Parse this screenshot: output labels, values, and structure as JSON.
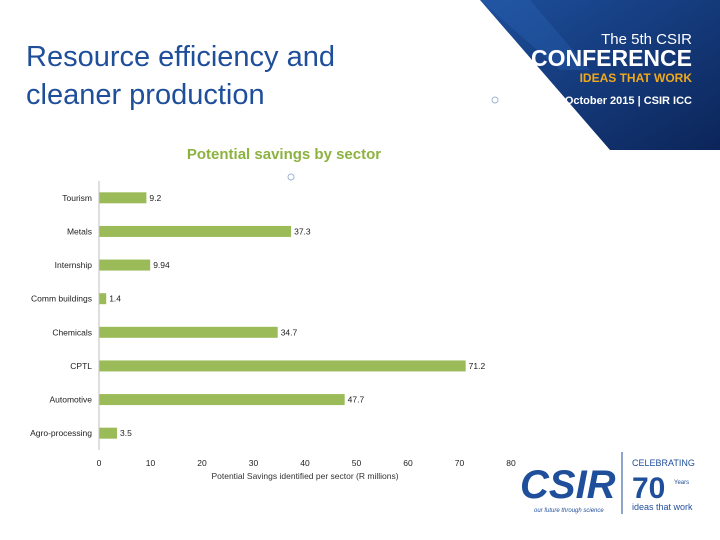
{
  "slide": {
    "title_line1": "Resource efficiency and",
    "title_line2": "cleaner production"
  },
  "banner": {
    "line1": "The 5th CSIR",
    "line2": "CONFERENCE",
    "line3": "IDEAS THAT WORK",
    "line4": "8-9 October 2015 | CSIR ICC"
  },
  "logo": {
    "wordmark": "CSIR",
    "tagline": "our future through science",
    "celebrating": "CELEBRATING",
    "anniversary": "70",
    "years": "Years",
    "ideas": "ideas that work"
  },
  "colors": {
    "bar": "#9bbb59",
    "title": "#1f4e9a",
    "banner_dark": "#0f2e6a",
    "banner_accent": "#f0a91c"
  },
  "chart_data": {
    "type": "bar",
    "orientation": "horizontal",
    "title": "Potential savings by sector",
    "xlabel": "Potential Savings identified per sector (R millions)",
    "ylabel": "",
    "categories": [
      "Tourism",
      "Metals",
      "Internship",
      "Comm buildings",
      "Chemicals",
      "CPTL",
      "Automotive",
      "Agro-processing"
    ],
    "values": [
      9.2,
      37.3,
      9.94,
      1.4,
      34.7,
      71.2,
      47.7,
      3.5
    ],
    "value_labels": [
      "9.2",
      "37.3",
      "9.94",
      "1.4",
      "34.7",
      "71.2",
      "47.7",
      "3.5"
    ],
    "xlim": [
      0,
      80
    ],
    "xticks": [
      "0",
      "10",
      "20",
      "30",
      "40",
      "50",
      "60",
      "70",
      "80"
    ],
    "grid": false,
    "legend": "none"
  }
}
